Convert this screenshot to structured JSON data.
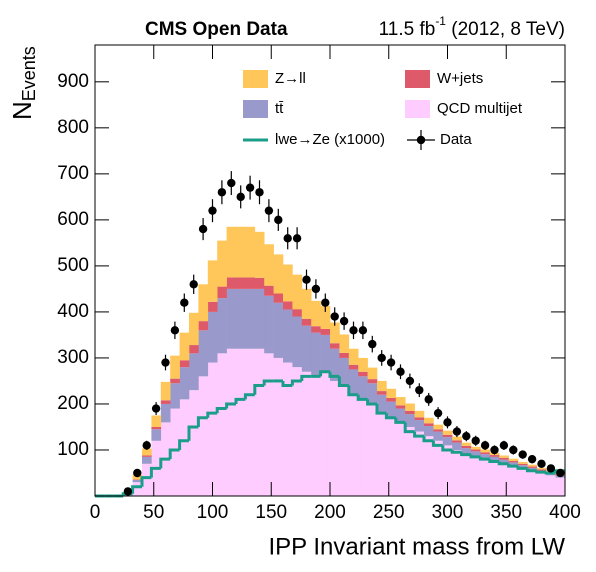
{
  "chart_data": {
    "type": "histogram",
    "title": "CMS Open Data",
    "lumi": "11.5 fb",
    "lumi_exp": "-1",
    "lumi_rest": " (2012, 8 TeV)",
    "ylabel": "N",
    "ylabel_sub": "Events",
    "xlabel": "IPP Invariant mass from LW",
    "bins": [
      0,
      8,
      16,
      24,
      32,
      40,
      48,
      56,
      64,
      72,
      80,
      88,
      96,
      104,
      112,
      120,
      128,
      136,
      144,
      152,
      160,
      168,
      176,
      184,
      192,
      200,
      208,
      216,
      224,
      232,
      240,
      248,
      256,
      264,
      272,
      280,
      288,
      296,
      304,
      312,
      320,
      328,
      336,
      344,
      352,
      360,
      368,
      376,
      384,
      392,
      400
    ],
    "xlim": [
      0,
      400
    ],
    "xticks": [
      0,
      50,
      100,
      150,
      200,
      250,
      300,
      350,
      400
    ],
    "ylim": [
      0,
      980
    ],
    "yticks": [
      100,
      200,
      300,
      400,
      500,
      600,
      700,
      800,
      900
    ],
    "series": [
      {
        "name": "QCD multijet",
        "color": "#ffccff",
        "values": [
          0,
          0,
          0,
          5,
          30,
          70,
          120,
          160,
          190,
          210,
          230,
          260,
          290,
          310,
          320,
          320,
          320,
          320,
          310,
          300,
          290,
          280,
          270,
          260,
          270,
          250,
          240,
          220,
          210,
          200,
          180,
          170,
          160,
          150,
          140,
          130,
          120,
          110,
          100,
          90,
          85,
          80,
          75,
          70,
          65,
          60,
          55,
          50,
          45,
          40
        ]
      },
      {
        "name": "tt̄",
        "color": "#9999cc",
        "values": [
          0,
          0,
          0,
          0,
          5,
          15,
          25,
          40,
          55,
          70,
          80,
          100,
          110,
          120,
          130,
          130,
          130,
          130,
          125,
          120,
          115,
          110,
          100,
          95,
          80,
          70,
          60,
          55,
          50,
          45,
          40,
          35,
          30,
          28,
          25,
          22,
          20,
          18,
          16,
          14,
          12,
          11,
          10,
          9,
          8,
          7,
          6,
          5,
          5,
          4
        ]
      },
      {
        "name": "W+jets",
        "color": "#de5a6a",
        "values": [
          0,
          0,
          0,
          0,
          1,
          3,
          5,
          8,
          10,
          15,
          18,
          20,
          22,
          25,
          25,
          25,
          25,
          24,
          22,
          20,
          18,
          16,
          15,
          14,
          13,
          12,
          11,
          10,
          10,
          9,
          8,
          8,
          7,
          7,
          6,
          6,
          5,
          5,
          5,
          5,
          4,
          4,
          4,
          4,
          3,
          3,
          3,
          3,
          3,
          3
        ]
      },
      {
        "name": "Z→ll",
        "color": "#ffc65a",
        "values": [
          0,
          0,
          0,
          3,
          10,
          15,
          25,
          40,
          50,
          60,
          70,
          80,
          90,
          100,
          110,
          110,
          110,
          100,
          90,
          85,
          80,
          75,
          65,
          55,
          50,
          45,
          40,
          35,
          30,
          25,
          22,
          20,
          18,
          16,
          14,
          12,
          10,
          9,
          8,
          7,
          6,
          6,
          5,
          5,
          5,
          4,
          4,
          3,
          3,
          3
        ]
      },
      {
        "name": "lwe→Ze (x1000)",
        "color": "#1a9e8a",
        "style": "step",
        "values": [
          0,
          0,
          0,
          5,
          20,
          40,
          60,
          80,
          100,
          120,
          150,
          170,
          180,
          190,
          200,
          210,
          220,
          240,
          250,
          250,
          240,
          250,
          260,
          260,
          270,
          260,
          240,
          220,
          210,
          200,
          180,
          170,
          160,
          140,
          130,
          120,
          110,
          100,
          95,
          90,
          85,
          80,
          75,
          70,
          65,
          60,
          55,
          52,
          50,
          55
        ]
      },
      {
        "name": "Data",
        "color": "#000000",
        "style": "points",
        "values": [
          null,
          null,
          null,
          10,
          50,
          110,
          190,
          290,
          360,
          420,
          460,
          580,
          620,
          660,
          680,
          650,
          670,
          660,
          620,
          600,
          560,
          560,
          470,
          450,
          420,
          390,
          380,
          360,
          360,
          330,
          300,
          290,
          270,
          250,
          230,
          210,
          180,
          160,
          140,
          130,
          120,
          110,
          100,
          110,
          100,
          90,
          80,
          70,
          60,
          50
        ],
        "errors": [
          null,
          null,
          null,
          3,
          7,
          10,
          14,
          17,
          19,
          20,
          21,
          24,
          25,
          26,
          26,
          25,
          26,
          26,
          25,
          24,
          24,
          24,
          22,
          21,
          20,
          20,
          19,
          19,
          19,
          18,
          17,
          17,
          16,
          16,
          15,
          14,
          13,
          13,
          12,
          11,
          11,
          10,
          10,
          10,
          10,
          9,
          9,
          8,
          8,
          7
        ]
      }
    ]
  }
}
